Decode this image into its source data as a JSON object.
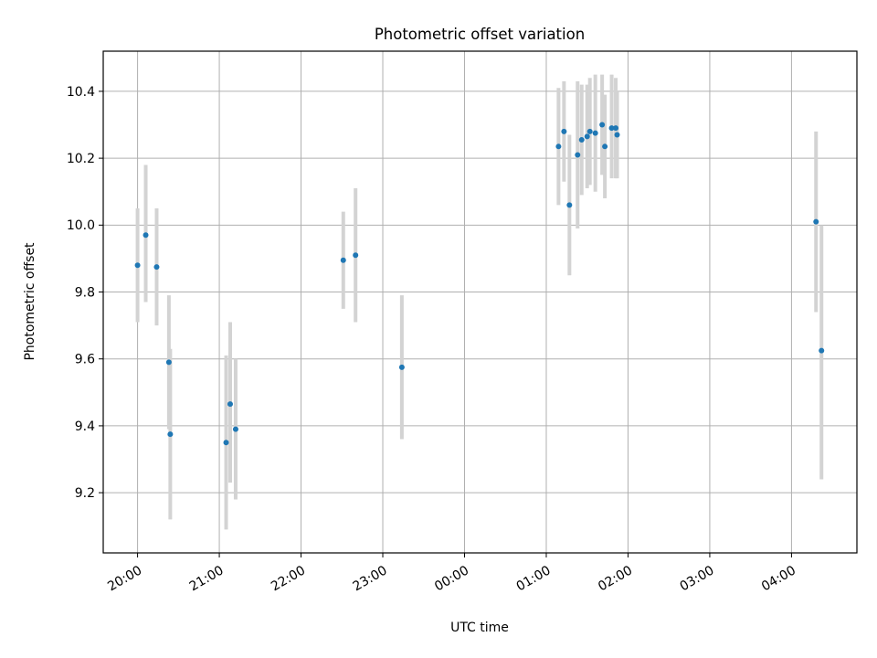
{
  "chart_data": {
    "type": "scatter",
    "title": "Photometric offset variation",
    "xlabel": "UTC time",
    "ylabel": "Photometric offset",
    "grid": true,
    "x_tick_labels": [
      "20:00",
      "21:00",
      "22:00",
      "23:00",
      "00:00",
      "01:00",
      "02:00",
      "03:00",
      "04:00"
    ],
    "x_tick_hours": [
      20,
      21,
      22,
      23,
      24,
      25,
      26,
      27,
      28
    ],
    "xlim_hours": [
      19.58,
      28.8
    ],
    "y_ticks": [
      9.2,
      9.4,
      9.6,
      9.8,
      10.0,
      10.2,
      10.4
    ],
    "y_tick_labels": [
      "9.2",
      "9.4",
      "9.6",
      "9.8",
      "10.0",
      "10.2",
      "10.4"
    ],
    "ylim": [
      9.02,
      10.52
    ],
    "colors": {
      "point": "#1f77b4",
      "errorbar": "#d3d3d3"
    },
    "points": [
      {
        "x": "20:00",
        "y": 9.88,
        "ylow": 9.71,
        "yhigh": 10.05
      },
      {
        "x": "20:06",
        "y": 9.97,
        "ylow": 9.77,
        "yhigh": 10.18
      },
      {
        "x": "20:14",
        "y": 9.875,
        "ylow": 9.7,
        "yhigh": 10.05
      },
      {
        "x": "20:23",
        "y": 9.59,
        "ylow": 9.39,
        "yhigh": 9.79
      },
      {
        "x": "20:24",
        "y": 9.375,
        "ylow": 9.12,
        "yhigh": 9.63
      },
      {
        "x": "21:05",
        "y": 9.35,
        "ylow": 9.09,
        "yhigh": 9.61
      },
      {
        "x": "21:08",
        "y": 9.465,
        "ylow": 9.23,
        "yhigh": 9.71
      },
      {
        "x": "21:12",
        "y": 9.39,
        "ylow": 9.18,
        "yhigh": 9.6
      },
      {
        "x": "22:31",
        "y": 9.895,
        "ylow": 9.75,
        "yhigh": 10.04
      },
      {
        "x": "22:40",
        "y": 9.91,
        "ylow": 9.71,
        "yhigh": 10.11
      },
      {
        "x": "23:14",
        "y": 9.575,
        "ylow": 9.36,
        "yhigh": 9.79
      },
      {
        "x": "01:09",
        "y": 10.235,
        "ylow": 10.06,
        "yhigh": 10.41
      },
      {
        "x": "01:13",
        "y": 10.28,
        "ylow": 10.13,
        "yhigh": 10.43
      },
      {
        "x": "01:17",
        "y": 10.06,
        "ylow": 9.85,
        "yhigh": 10.27
      },
      {
        "x": "01:23",
        "y": 10.21,
        "ylow": 9.99,
        "yhigh": 10.43
      },
      {
        "x": "01:26",
        "y": 10.255,
        "ylow": 10.09,
        "yhigh": 10.42
      },
      {
        "x": "01:30",
        "y": 10.265,
        "ylow": 10.11,
        "yhigh": 10.42
      },
      {
        "x": "01:32",
        "y": 10.28,
        "ylow": 10.12,
        "yhigh": 10.44
      },
      {
        "x": "01:36",
        "y": 10.275,
        "ylow": 10.1,
        "yhigh": 10.45
      },
      {
        "x": "01:41",
        "y": 10.3,
        "ylow": 10.15,
        "yhigh": 10.45
      },
      {
        "x": "01:43",
        "y": 10.235,
        "ylow": 10.08,
        "yhigh": 10.39
      },
      {
        "x": "01:48",
        "y": 10.29,
        "ylow": 10.14,
        "yhigh": 10.45
      },
      {
        "x": "01:51",
        "y": 10.29,
        "ylow": 10.14,
        "yhigh": 10.44
      },
      {
        "x": "01:52",
        "y": 10.27,
        "ylow": 10.14,
        "yhigh": 10.4
      },
      {
        "x": "04:18",
        "y": 10.01,
        "ylow": 9.74,
        "yhigh": 10.28
      },
      {
        "x": "04:22",
        "y": 9.625,
        "ylow": 9.24,
        "yhigh": 10.0
      }
    ]
  }
}
